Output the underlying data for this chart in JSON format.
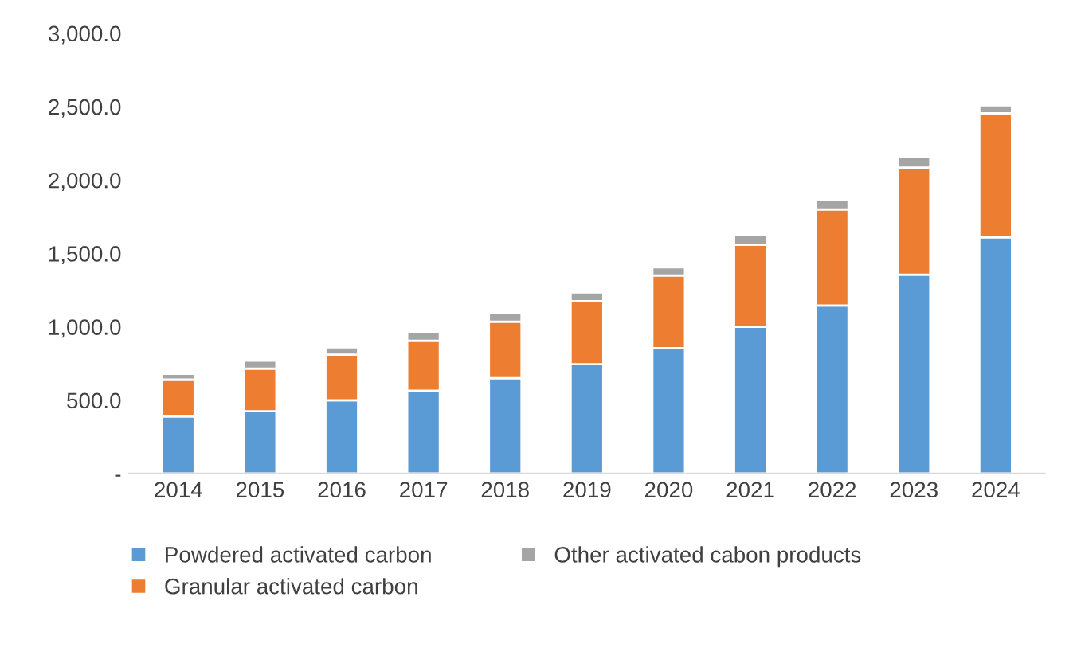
{
  "chart_data": {
    "type": "bar",
    "stacked": true,
    "categories": [
      "2014",
      "2015",
      "2016",
      "2017",
      "2018",
      "2019",
      "2020",
      "2021",
      "2022",
      "2023",
      "2024"
    ],
    "series": [
      {
        "name": "Powdered activated carbon",
        "color": "#5b9bd5",
        "values": [
          390,
          425,
          500,
          565,
          650,
          745,
          855,
          1000,
          1145,
          1355,
          1610
        ]
      },
      {
        "name": "Granular activated carbon",
        "color": "#ed7d31",
        "values": [
          250,
          290,
          310,
          340,
          385,
          430,
          495,
          560,
          655,
          730,
          845
        ]
      },
      {
        "name": "Other activated cabon products",
        "color": "#a5a5a5",
        "values": [
          40,
          55,
          50,
          60,
          60,
          60,
          55,
          65,
          65,
          70,
          55
        ]
      }
    ],
    "ylim": [
      0,
      3000
    ],
    "yticks": [
      {
        "value": 0,
        "label": "-"
      },
      {
        "value": 500,
        "label": "500.0"
      },
      {
        "value": 1000,
        "label": "1,000.0"
      },
      {
        "value": 1500,
        "label": "1,500.0"
      },
      {
        "value": 2000,
        "label": "2,000.0"
      },
      {
        "value": 2500,
        "label": "2,500.0"
      },
      {
        "value": 3000,
        "label": "3,000.0"
      }
    ],
    "grid": false,
    "legend": "bottom"
  }
}
